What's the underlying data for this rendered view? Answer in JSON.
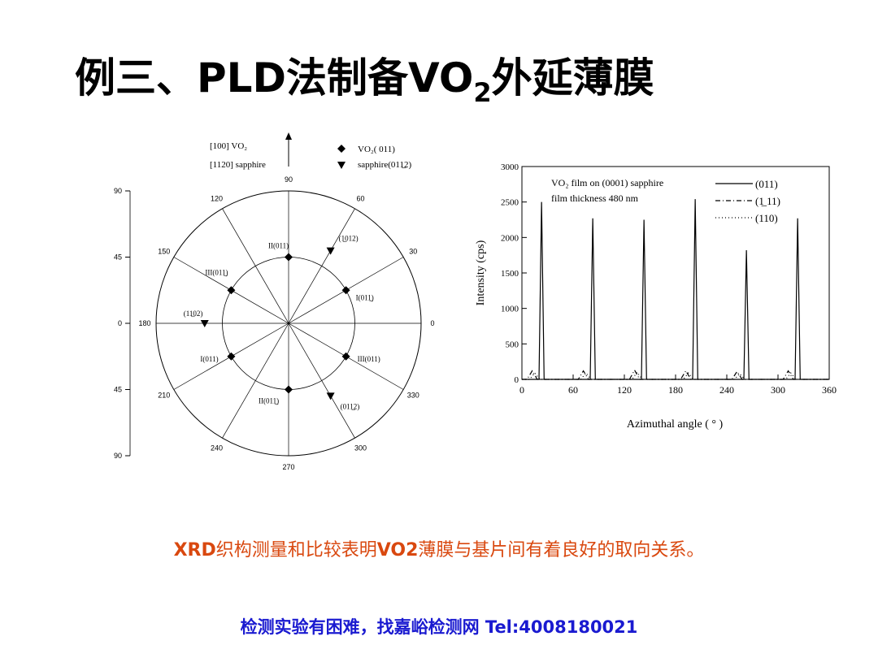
{
  "title": {
    "before": "例三、PLD法制备VO",
    "sub": "2",
    "after": "外延薄膜"
  },
  "pole_figure": {
    "legend": {
      "axis_vo2": "[100] VO₂",
      "axis_sapphire": "[1120] sapphire",
      "vo2": "VO₂( 011)",
      "sapphire": "sapphire(011̲2)"
    },
    "phi_ticks": [
      0,
      30,
      60,
      90,
      120,
      150,
      180,
      210,
      240,
      270,
      300,
      330
    ],
    "chi_ticks": [
      {
        "value": -90,
        "label": "90"
      },
      {
        "value": -45,
        "label": "45"
      },
      0,
      45,
      90
    ],
    "chi_max": 90,
    "points": [
      {
        "kind": "vo2",
        "phi": 90,
        "chi": 45,
        "label": "II(011)"
      },
      {
        "kind": "sapphire",
        "phi": 60,
        "chi": 57,
        "label": "(1̲012)"
      },
      {
        "kind": "vo2",
        "phi": 150,
        "chi": 45,
        "label": "III(011̲)"
      },
      {
        "kind": "vo2",
        "phi": 30,
        "chi": 45,
        "label": "I(011̲)"
      },
      {
        "kind": "sapphire",
        "phi": 180,
        "chi": 57,
        "label": "(11̲02)"
      },
      {
        "kind": "vo2",
        "phi": 210,
        "chi": 45,
        "label": "I(011)"
      },
      {
        "kind": "vo2",
        "phi": 330,
        "chi": 45,
        "label": "III(011)"
      },
      {
        "kind": "vo2",
        "phi": 270,
        "chi": 45,
        "label": "II(011̲)"
      },
      {
        "kind": "sapphire",
        "phi": 300,
        "chi": 57,
        "label": "(011̲2)"
      }
    ]
  },
  "chart_data": {
    "type": "line",
    "annotations": [
      "VO₂ film on (0001) sapphire",
      "film thickness 480 nm"
    ],
    "x_label": "Azimuthal angle ( ° )",
    "y_label": "Intensity (cps)",
    "xlim": [
      0,
      360
    ],
    "xticks": [
      0,
      60,
      120,
      180,
      240,
      300,
      360
    ],
    "ylim": [
      0,
      3000
    ],
    "yticks": [
      0,
      500,
      1000,
      1500,
      2000,
      2500,
      3000
    ],
    "series": [
      {
        "name": "(011)",
        "color": "#000000",
        "dash": "",
        "x": [
          0,
          20,
          23,
          26,
          80,
          83,
          86,
          140,
          143,
          146,
          200,
          203,
          206,
          260,
          263,
          266,
          320,
          323,
          326,
          360
        ],
        "values": [
          0,
          0,
          2500,
          0,
          0,
          2270,
          0,
          0,
          2250,
          0,
          0,
          2540,
          0,
          0,
          1820,
          0,
          0,
          2270,
          0,
          0
        ]
      },
      {
        "name": "(1̲ 11)",
        "color": "#000000",
        "dash": "6 3 1 3",
        "x": [
          0,
          6,
          12,
          18,
          66,
          72,
          78,
          126,
          132,
          138,
          186,
          192,
          198,
          246,
          252,
          258,
          306,
          312,
          318,
          360
        ],
        "values": [
          0,
          0,
          120,
          0,
          0,
          120,
          0,
          0,
          130,
          0,
          0,
          120,
          0,
          0,
          110,
          0,
          0,
          120,
          0,
          0
        ]
      },
      {
        "name": "(110)",
        "color": "#000000",
        "dash": "1 3",
        "x": [
          0,
          9,
          15,
          21,
          69,
          75,
          81,
          129,
          135,
          141,
          189,
          195,
          201,
          249,
          255,
          261,
          309,
          315,
          321,
          360
        ],
        "values": [
          0,
          0,
          90,
          0,
          0,
          90,
          0,
          0,
          100,
          0,
          0,
          90,
          0,
          0,
          80,
          0,
          0,
          90,
          0,
          0
        ]
      }
    ]
  },
  "caption": {
    "p1": "XRD",
    "p2": "织构测量和比较表明",
    "p3": "VO2",
    "p4": "薄膜与基片间有着良好的取向关系。"
  },
  "footer": "检测实验有困难，找嘉峪检测网 Tel:4008180021"
}
